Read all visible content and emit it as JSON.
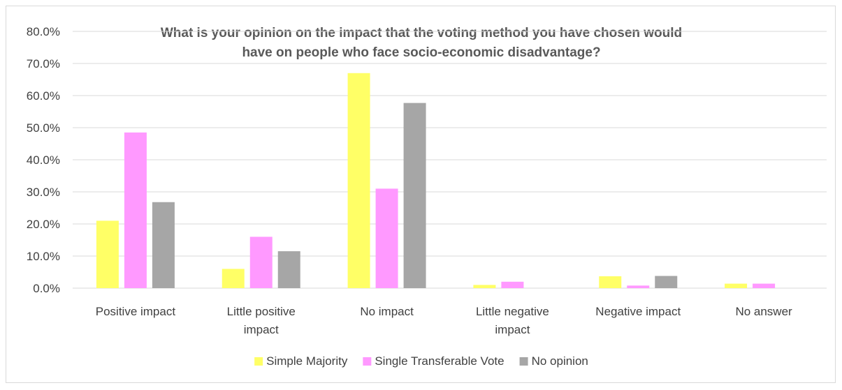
{
  "chart_data": {
    "type": "bar",
    "title_lines": [
      "What is your opinion on the impact that the voting method you have chosen would",
      "have on people who face socio-economic disadvantage?"
    ],
    "categories": [
      [
        "Positive impact"
      ],
      [
        "Little positive",
        "impact"
      ],
      [
        "No impact"
      ],
      [
        "Little negative",
        "impact"
      ],
      [
        "Negative impact"
      ],
      [
        "No answer"
      ]
    ],
    "series": [
      {
        "name": "Simple Majority",
        "color": "#ffff66",
        "values": [
          21.0,
          6.0,
          67.0,
          1.0,
          3.7,
          1.4
        ]
      },
      {
        "name": "Single Transferable Vote",
        "color": "#ff99ff",
        "values": [
          48.5,
          16.0,
          31.0,
          2.0,
          0.8,
          1.4
        ]
      },
      {
        "name": "No opinion",
        "color": "#a6a6a6",
        "values": [
          26.8,
          11.5,
          57.7,
          0.0,
          3.8,
          0.0
        ]
      }
    ],
    "ylim": [
      0,
      80
    ],
    "y_ticks": [
      "0.0%",
      "10.0%",
      "20.0%",
      "30.0%",
      "40.0%",
      "50.0%",
      "60.0%",
      "70.0%",
      "80.0%"
    ],
    "y_tick_values": [
      0,
      10,
      20,
      30,
      40,
      50,
      60,
      70,
      80
    ],
    "grid": true,
    "legend_position": "bottom"
  }
}
